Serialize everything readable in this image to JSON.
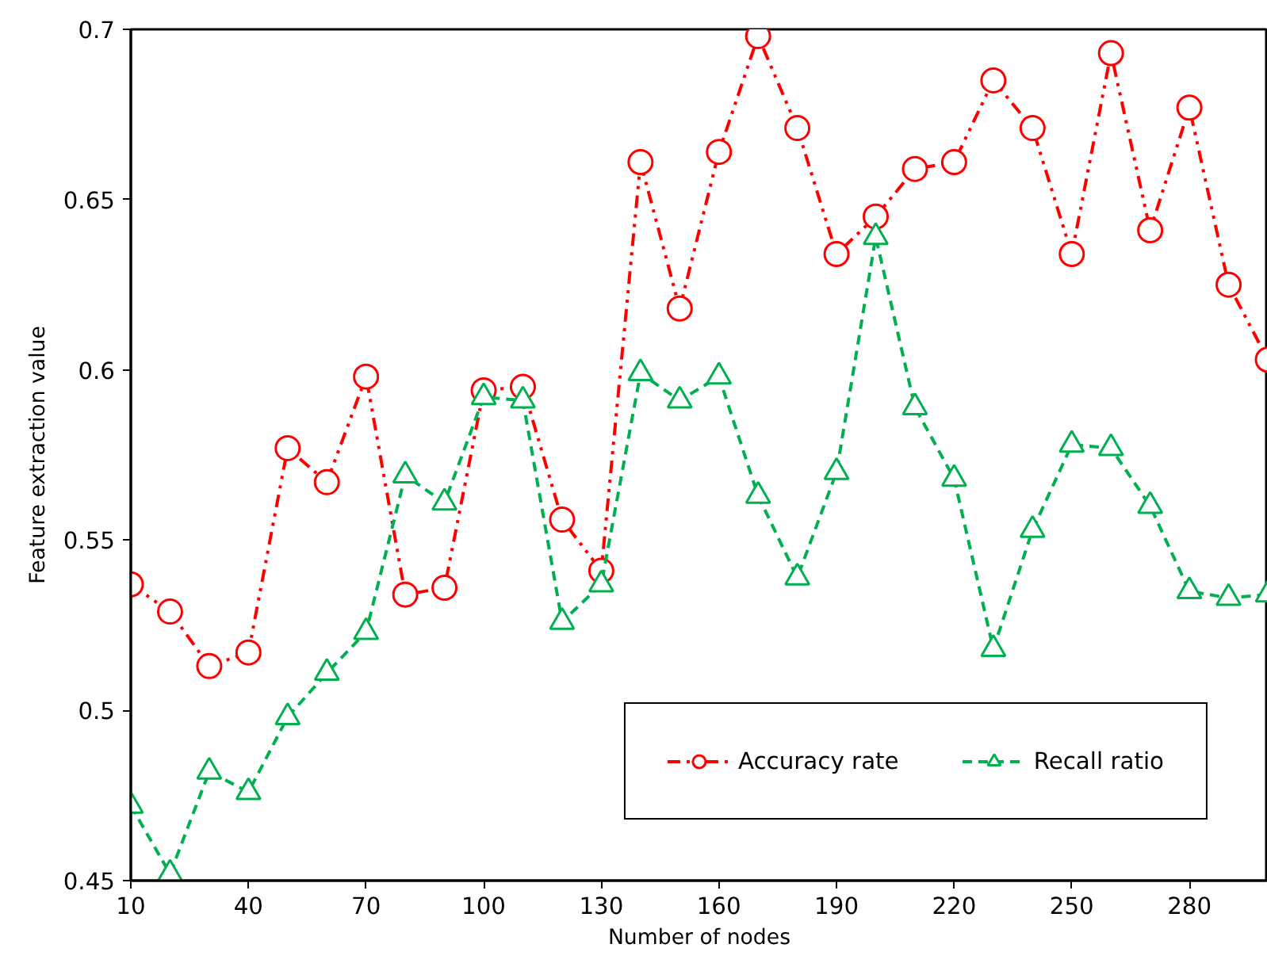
{
  "chart_data": {
    "type": "line",
    "xlabel": "Number of nodes",
    "ylabel": "Feature extraction value",
    "x": [
      10,
      20,
      30,
      40,
      50,
      60,
      70,
      80,
      90,
      100,
      110,
      120,
      130,
      140,
      150,
      160,
      170,
      180,
      190,
      200,
      210,
      220,
      230,
      240,
      250,
      260,
      270,
      280,
      290,
      300
    ],
    "series": [
      {
        "name": "Accuracy rate",
        "color": "#ff0000",
        "marker": "circle",
        "line_style": "dashdot",
        "values": [
          0.537,
          0.529,
          0.513,
          0.517,
          0.577,
          0.567,
          0.598,
          0.534,
          0.536,
          0.594,
          0.595,
          0.556,
          0.541,
          0.661,
          0.618,
          0.664,
          0.698,
          0.671,
          0.634,
          0.645,
          0.659,
          0.661,
          0.685,
          0.671,
          0.634,
          0.693,
          0.641,
          0.677,
          0.625,
          0.603
        ]
      },
      {
        "name": "Recall ratio",
        "color": "#00b050",
        "marker": "triangle",
        "line_style": "dashed",
        "values": [
          0.472,
          0.452,
          0.482,
          0.476,
          0.498,
          0.511,
          0.523,
          0.569,
          0.561,
          0.592,
          0.591,
          0.526,
          0.537,
          0.599,
          0.591,
          0.598,
          0.563,
          0.539,
          0.57,
          0.639,
          0.589,
          0.568,
          0.518,
          0.553,
          0.578,
          0.577,
          0.56,
          0.535,
          0.533,
          0.534
        ]
      }
    ],
    "xlim": [
      10,
      300
    ],
    "xticks": [
      10,
      40,
      70,
      100,
      130,
      160,
      190,
      220,
      250,
      280
    ],
    "ylim": [
      0.45,
      0.7
    ],
    "yticks": [
      0.45,
      0.5,
      0.55,
      0.6,
      0.65,
      0.7
    ],
    "grid": false,
    "legend": "bottom right"
  }
}
